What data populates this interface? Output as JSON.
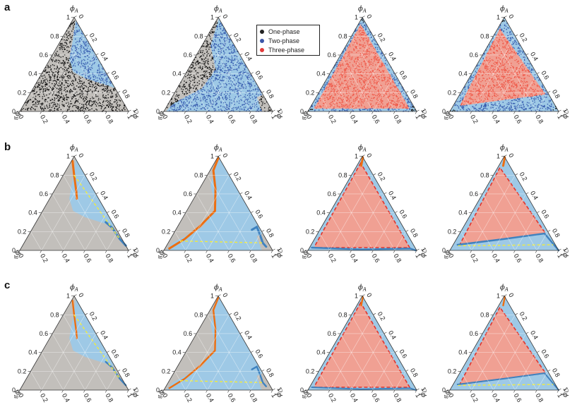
{
  "figure": {
    "row_labels": [
      "a",
      "b",
      "c"
    ],
    "legend": [
      {
        "label": "One-phase",
        "color": "#222222"
      },
      {
        "label": "Two-phase",
        "color": "#3b56a8"
      },
      {
        "label": "Three-phase",
        "color": "#e23a3a"
      }
    ],
    "colors": {
      "one_phase_region": "#c2bfbb",
      "two_phase_region": "#9ec9e6",
      "three_phase_region": "#f0a093",
      "one_dots": "#111111",
      "two_dots": "#3a5fb0",
      "three_dots": "#ef5a4a",
      "orange": "#ec6f12",
      "blue_line": "#3f82bf",
      "yellow": "#f2ec3a",
      "red_dash": "#e0352d"
    },
    "ticks": [
      "0",
      "0.2",
      "0.4",
      "0.6",
      "0.8",
      "1"
    ]
  },
  "chart_data": [
    {
      "type": "scatter",
      "panel": "a1",
      "title": "",
      "axis_labels": [
        "ϕA",
        "ϕB",
        "ϕC"
      ],
      "ticks": [
        0,
        0.2,
        0.4,
        0.6,
        0.8,
        1
      ],
      "two_phase_region": [
        [
          0.97,
          0.0
        ],
        [
          0.45,
          0.15
        ],
        [
          0.25,
          0.05
        ],
        [
          0.0,
          0.3
        ]
      ],
      "regions": [
        "One-phase",
        "Two-phase"
      ]
    },
    {
      "type": "scatter",
      "panel": "a2",
      "title": "",
      "axis_labels": [
        "ϕA",
        "ϕB",
        "ϕC"
      ],
      "ticks": [
        0,
        0.2,
        0.4,
        0.6,
        0.8,
        1
      ],
      "regions": [
        "One-phase",
        "Two-phase"
      ]
    },
    {
      "type": "scatter",
      "panel": "a3",
      "title": "",
      "axis_labels": [
        "ϕA",
        "ϕB",
        "ϕC"
      ],
      "ticks": [
        0,
        0.2,
        0.4,
        0.6,
        0.8,
        1
      ],
      "three_phase_triangle": [
        [
          0.93,
          0.05,
          0.02
        ],
        [
          0.02,
          0.93,
          0.05
        ],
        [
          0.03,
          0.05,
          0.92
        ]
      ],
      "regions": [
        "One-phase",
        "Two-phase",
        "Three-phase"
      ]
    },
    {
      "type": "scatter",
      "panel": "a4",
      "title": "",
      "axis_labels": [
        "ϕA",
        "ϕB",
        "ϕC"
      ],
      "ticks": [
        0,
        0.2,
        0.4,
        0.6,
        0.8,
        1
      ],
      "three_phase_triangle": [
        [
          0.88,
          0.1,
          0.02
        ],
        [
          0.05,
          0.88,
          0.07
        ],
        [
          0.2,
          0.02,
          0.78
        ]
      ],
      "regions": [
        "One-phase",
        "Two-phase",
        "Three-phase"
      ]
    },
    {
      "type": "line",
      "panel": "b1",
      "axis_labels": [
        "ϕA",
        "ϕB",
        "ϕC"
      ],
      "ticks": [
        0,
        0.2,
        0.4,
        0.6,
        0.8,
        1
      ]
    },
    {
      "type": "line",
      "panel": "b2",
      "axis_labels": [
        "ϕA",
        "ϕB",
        "ϕC"
      ],
      "ticks": [
        0,
        0.2,
        0.4,
        0.6,
        0.8,
        1
      ]
    },
    {
      "type": "line",
      "panel": "b3",
      "axis_labels": [
        "ϕA",
        "ϕB",
        "ϕC"
      ],
      "ticks": [
        0,
        0.2,
        0.4,
        0.6,
        0.8,
        1
      ]
    },
    {
      "type": "line",
      "panel": "b4",
      "axis_labels": [
        "ϕA",
        "ϕB",
        "ϕC"
      ],
      "ticks": [
        0,
        0.2,
        0.4,
        0.6,
        0.8,
        1
      ]
    },
    {
      "type": "line",
      "panel": "c1",
      "axis_labels": [
        "ϕA",
        "ϕB",
        "ϕC"
      ],
      "ticks": [
        0,
        0.2,
        0.4,
        0.6,
        0.8,
        1
      ]
    },
    {
      "type": "line",
      "panel": "c2",
      "axis_labels": [
        "ϕA",
        "ϕB",
        "ϕC"
      ],
      "ticks": [
        0,
        0.2,
        0.4,
        0.6,
        0.8,
        1
      ]
    },
    {
      "type": "line",
      "panel": "c3",
      "axis_labels": [
        "ϕA",
        "ϕB",
        "ϕC"
      ],
      "ticks": [
        0,
        0.2,
        0.4,
        0.6,
        0.8,
        1
      ]
    },
    {
      "type": "line",
      "panel": "c4",
      "axis_labels": [
        "ϕA",
        "ϕB",
        "ϕC"
      ],
      "ticks": [
        0,
        0.2,
        0.4,
        0.6,
        0.8,
        1
      ]
    }
  ]
}
